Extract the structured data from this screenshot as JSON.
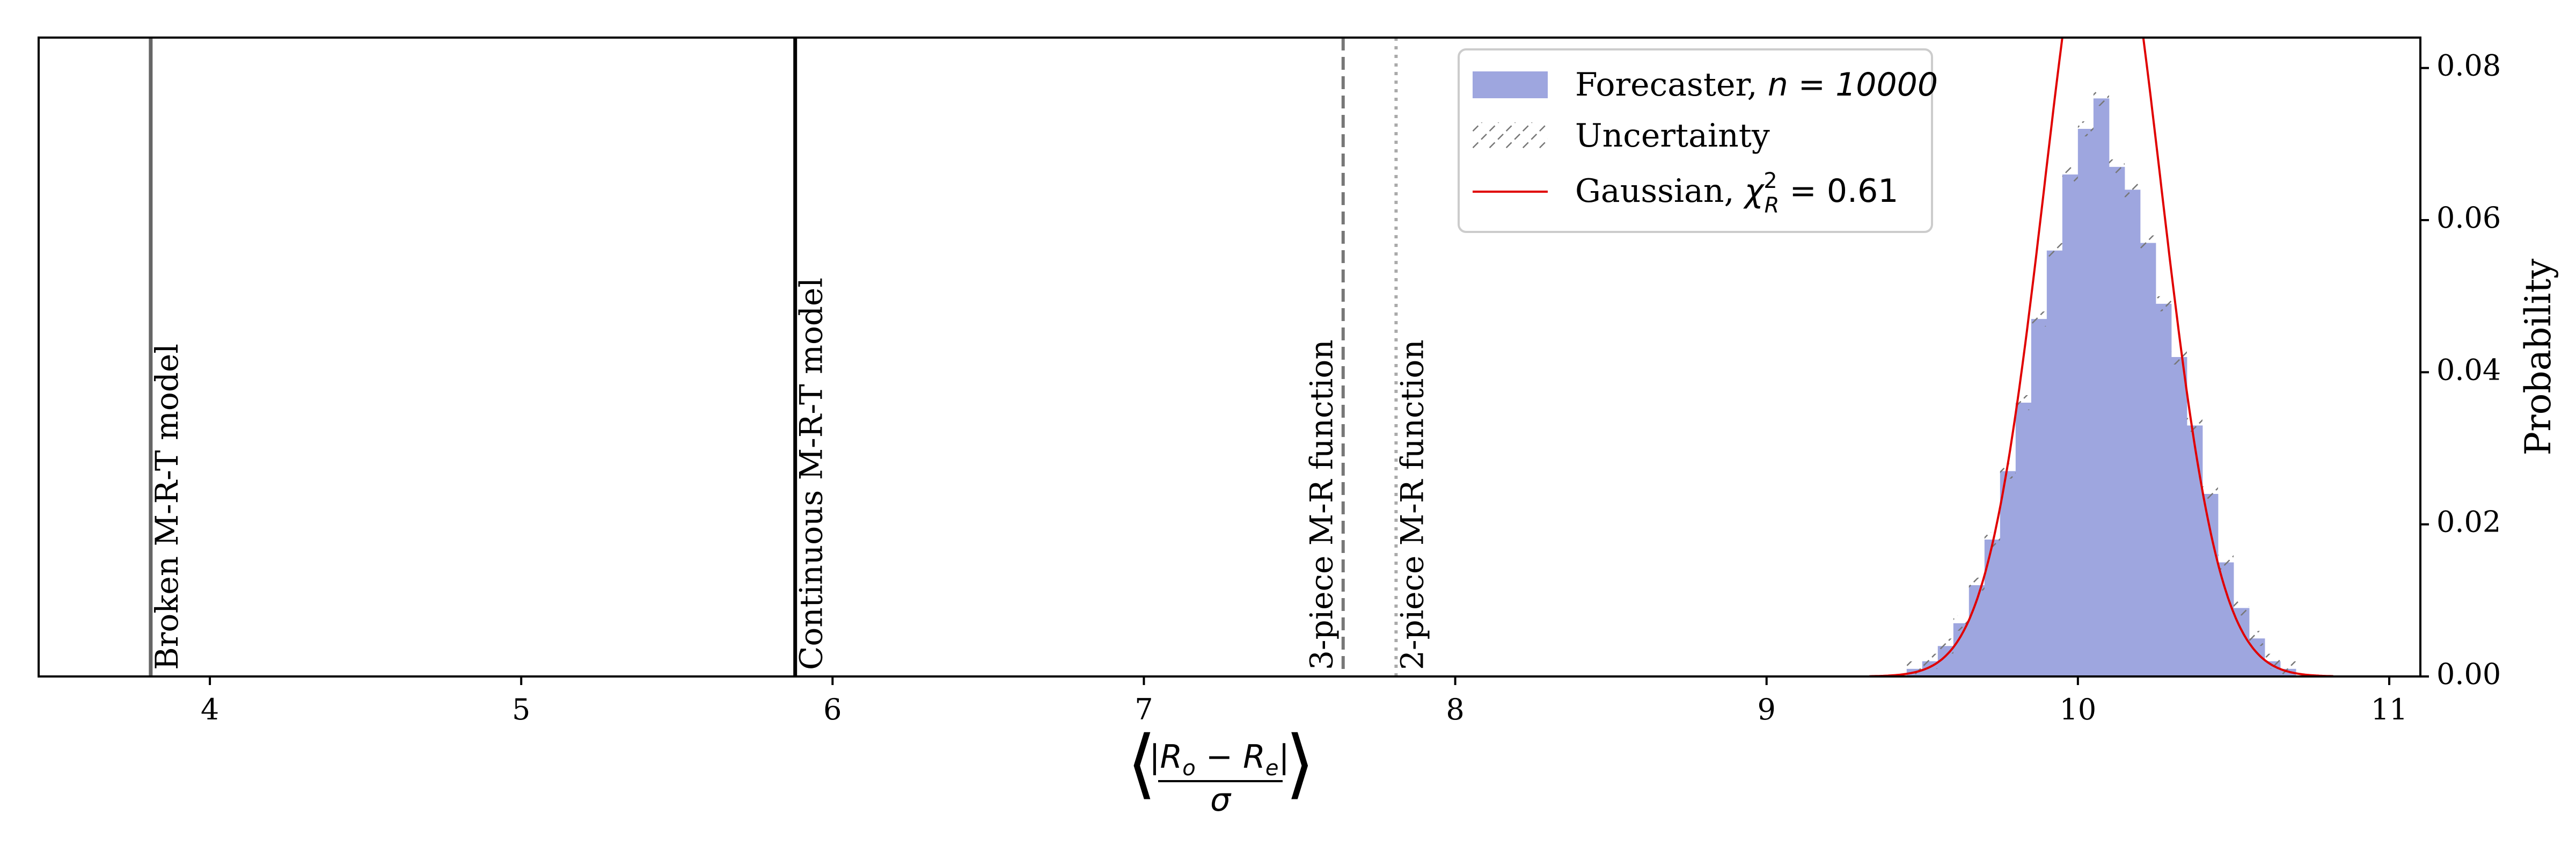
{
  "chart_data": {
    "type": "bar",
    "xlabel_parts": {
      "abs_numerator": "|R",
      "sub_o": "o",
      "minus": " − R",
      "sub_e": "e",
      "abs_close": "|",
      "denominator": "σ",
      "open": "⟨",
      "close": "⟩"
    },
    "ylabel": "Probability",
    "xlim": [
      3.45,
      11.1
    ],
    "ylim": [
      0.0,
      0.084
    ],
    "x_ticks": [
      4,
      5,
      6,
      7,
      8,
      9,
      10,
      11
    ],
    "y_ticks": [
      0.0,
      0.02,
      0.04,
      0.06,
      0.08
    ],
    "y_tick_labels": [
      "0.00",
      "0.02",
      "0.04",
      "0.06",
      "0.08"
    ],
    "y_axis_side": "right",
    "grid": false,
    "legend_position": "top-right",
    "reference_lines": [
      {
        "x": 3.81,
        "label": "Broken M-R-T model",
        "style": "solid",
        "color": "#666666"
      },
      {
        "x": 5.88,
        "label": "Continuous M-R-T model",
        "style": "solid",
        "color": "#000000"
      },
      {
        "x": 7.64,
        "label": "3-piece M-R function",
        "style": "dashed",
        "color": "#777777"
      },
      {
        "x": 7.81,
        "label": "2-piece M-R function",
        "style": "dotted",
        "color": "#aaaaaa"
      }
    ],
    "histogram": {
      "color": "#9ea6df",
      "bin_edges": [
        9.45,
        9.5,
        9.55,
        9.6,
        9.65,
        9.7,
        9.75,
        9.8,
        9.85,
        9.9,
        9.95,
        10.0,
        10.05,
        10.1,
        10.15,
        10.2,
        10.25,
        10.3,
        10.35,
        10.4,
        10.45,
        10.5,
        10.55,
        10.6,
        10.65,
        10.7
      ],
      "values": [
        0.001,
        0.002,
        0.004,
        0.007,
        0.012,
        0.018,
        0.027,
        0.036,
        0.047,
        0.056,
        0.066,
        0.072,
        0.076,
        0.067,
        0.064,
        0.057,
        0.049,
        0.042,
        0.033,
        0.024,
        0.015,
        0.009,
        0.005,
        0.002,
        0.001
      ]
    },
    "gaussian": {
      "mu": 10.08,
      "sigma": 0.186,
      "color": "#e00000",
      "x_range": [
        9.33,
        10.82
      ]
    },
    "legend": {
      "forecaster": {
        "text": "Forecaster, ",
        "math": "n = 10000"
      },
      "uncertainty": {
        "text": "Uncertainty"
      },
      "gaussian": {
        "text": "Gaussian, ",
        "math_chi": "χ",
        "sup": "2",
        "sub": "R",
        "math_val": " = 0.61"
      }
    }
  }
}
